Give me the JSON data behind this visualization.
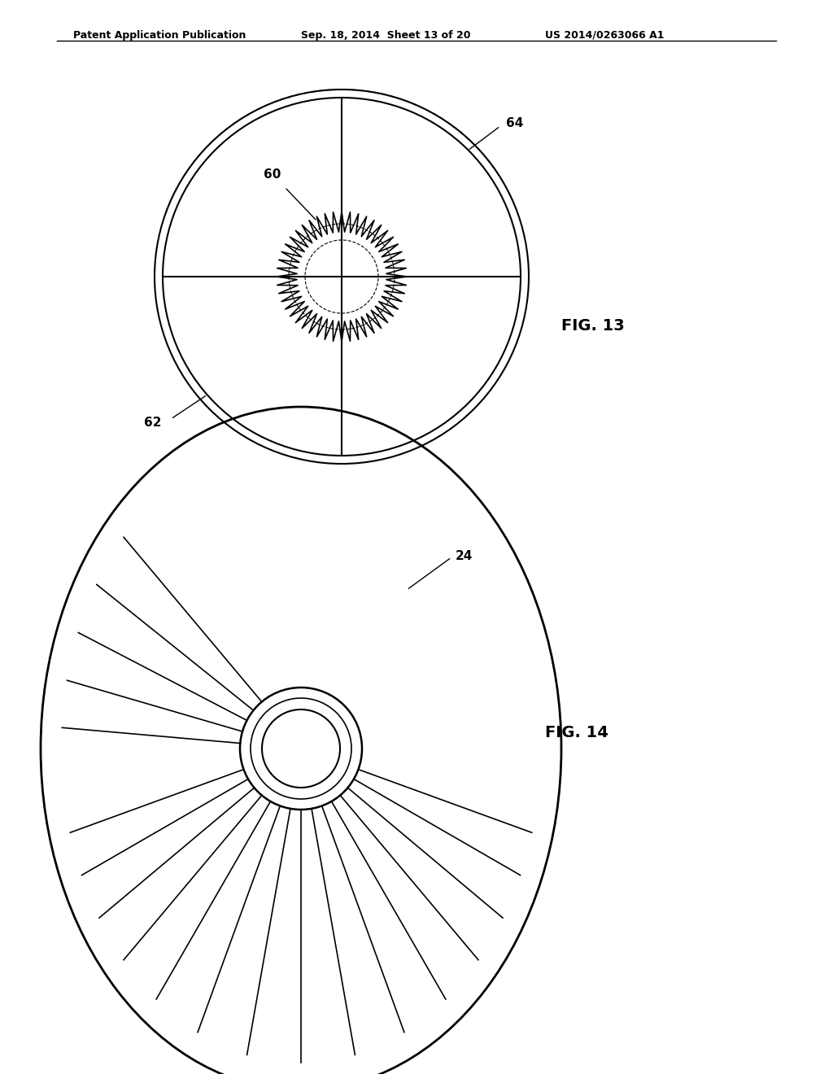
{
  "header_left": "Patent Application Publication",
  "header_center": "Sep. 18, 2014  Sheet 13 of 20",
  "header_right": "US 2014/0263066 A1",
  "fig13_label": "FIG. 13",
  "fig14_label": "FIG. 14",
  "label_60": "60",
  "label_62": "62",
  "label_64": "64",
  "label_24": "24",
  "background": "#ffffff",
  "line_color": "#000000"
}
